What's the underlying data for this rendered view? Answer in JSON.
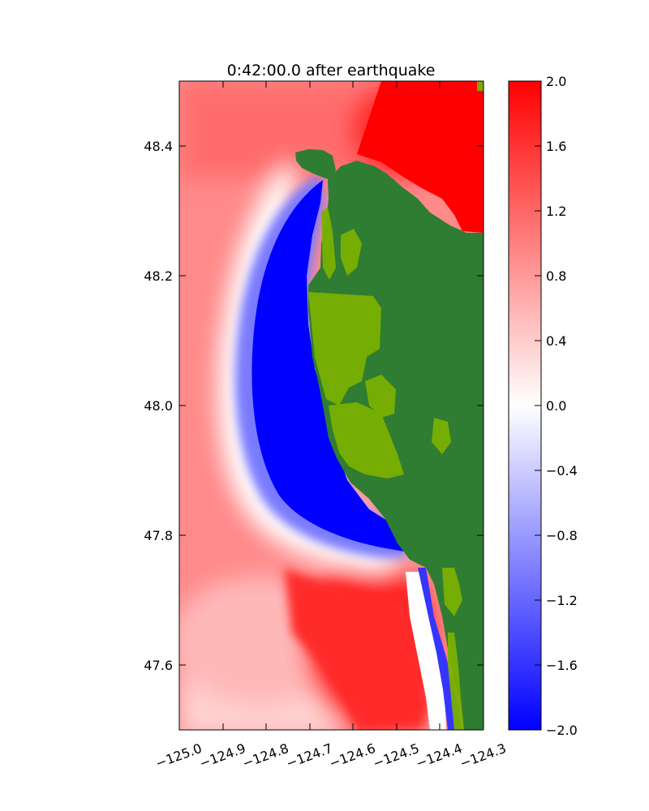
{
  "chart_data": {
    "type": "heatmap",
    "title": "0:42:00.0 after earthquake",
    "xlabel": "",
    "ylabel": "",
    "xlim": [
      -125.0,
      -124.3
    ],
    "ylim": [
      47.5,
      48.5
    ],
    "xticks": [
      -125.0,
      -124.9,
      -124.8,
      -124.7,
      -124.6,
      -124.5,
      -124.4,
      -124.3
    ],
    "xtick_labels": [
      "−125.0",
      "−124.9",
      "−124.8",
      "−124.7",
      "−124.6",
      "−124.5",
      "−124.4",
      "−124.3"
    ],
    "yticks": [
      47.6,
      47.8,
      48.0,
      48.2,
      48.4
    ],
    "ytick_labels": [
      "47.6",
      "47.8",
      "48.0",
      "48.2",
      "48.4"
    ],
    "colorbar": {
      "vmin": -2.0,
      "vmax": 2.0,
      "ticks": [
        -2.0,
        -1.6,
        -1.2,
        -0.8,
        -0.4,
        0.0,
        0.4,
        0.8,
        1.2,
        1.6,
        2.0
      ],
      "tick_labels": [
        "−2.0",
        "−1.6",
        "−1.2",
        "−0.8",
        "−0.4",
        "0.0",
        "0.4",
        "0.8",
        "1.2",
        "1.6",
        "2.0"
      ],
      "colormap": "bwr",
      "colors": {
        "low": "#0000ff",
        "mid": "#ffffff",
        "high": "#ff0000"
      }
    },
    "land_colors": [
      "#2f7d32",
      "#7ab000"
    ],
    "grid": false
  }
}
